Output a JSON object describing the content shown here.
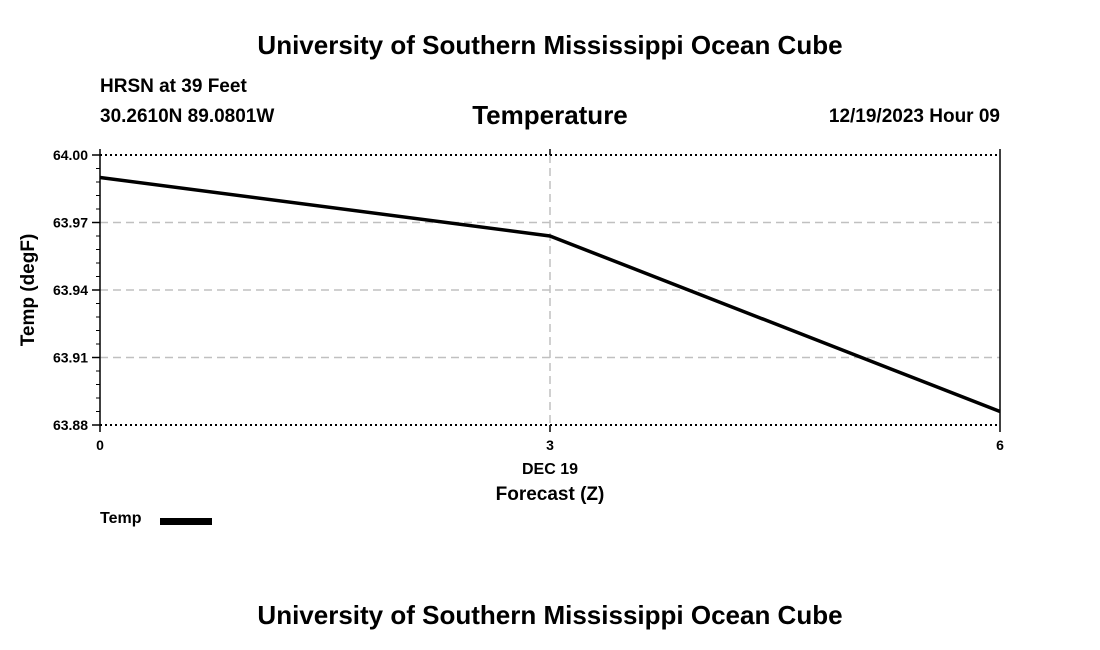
{
  "header": {
    "title_top": "University of Southern Mississippi Ocean Cube",
    "station": "HRSN at 39 Feet",
    "coords": "30.2610N  89.0801W",
    "variable": "Temperature",
    "datetime": "12/19/2023 Hour 09",
    "title_bottom": "University of Southern Mississippi Ocean Cube"
  },
  "legend": {
    "label": "Temp"
  },
  "chart_data": {
    "type": "line",
    "title": "Temperature",
    "xlabel": "Forecast (Z)",
    "xlabel_date": "DEC 19",
    "ylabel": "Temp (degF)",
    "x": [
      0,
      3,
      6
    ],
    "series": [
      {
        "name": "Temp",
        "values": [
          63.99,
          63.964,
          63.886
        ]
      }
    ],
    "xlim": [
      0,
      6
    ],
    "ylim": [
      63.88,
      64.0
    ],
    "x_ticks": [
      0,
      3,
      6
    ],
    "x_tick_labels": [
      "0",
      "3",
      "6"
    ],
    "y_ticks": [
      63.88,
      63.91,
      63.94,
      63.97,
      64.0
    ],
    "y_tick_labels": [
      "63.88",
      "63.91",
      "63.94",
      "63.97",
      "64.00"
    ],
    "grid": true,
    "colors": {
      "line": "#000000",
      "grid": "#c0c0c0"
    }
  }
}
